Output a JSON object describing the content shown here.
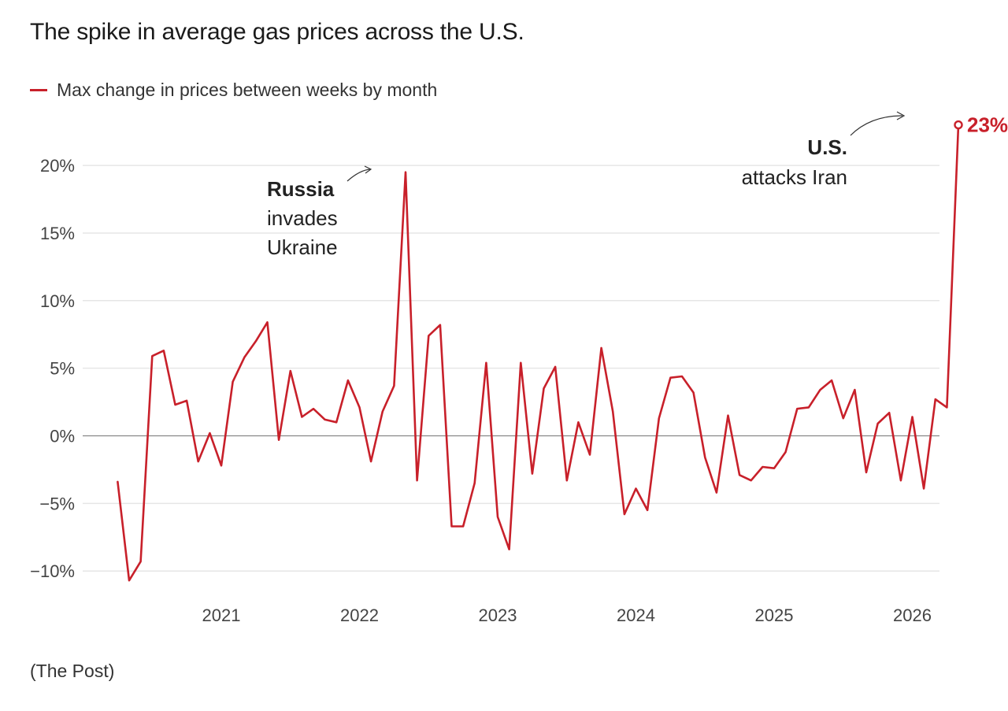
{
  "title": "The spike in average gas prices across the U.S.",
  "legend_label": "Max change in prices between weeks by month",
  "source": "(The Post)",
  "colors": {
    "line": "#c8202a",
    "grid": "#e6e6e6",
    "zero": "#888888",
    "text": "#222222"
  },
  "chart_data": {
    "type": "line",
    "title": "The spike in average gas prices across the U.S.",
    "xlabel": "",
    "ylabel": "",
    "ylim": [
      -10,
      20
    ],
    "yticks": [
      {
        "value": 20,
        "label": "20%"
      },
      {
        "value": 15,
        "label": "15%"
      },
      {
        "value": 10,
        "label": "10%"
      },
      {
        "value": 5,
        "label": "5%"
      },
      {
        "value": 0,
        "label": "0%"
      },
      {
        "value": -5,
        "label": "−5%"
      },
      {
        "value": -10,
        "label": "−10%"
      }
    ],
    "xticks": [
      {
        "t": 2021.0,
        "label": "2021"
      },
      {
        "t": 2022.0,
        "label": "2022"
      },
      {
        "t": 2023.0,
        "label": "2023"
      },
      {
        "t": 2024.0,
        "label": "2024"
      },
      {
        "t": 2025.0,
        "label": "2025"
      },
      {
        "t": 2026.0,
        "label": "2026"
      }
    ],
    "series": [
      {
        "name": "Max change in prices between weeks by month",
        "start": 2020.25,
        "step_months": 1,
        "values": [
          -3.4,
          -10.7,
          -9.3,
          5.9,
          6.3,
          2.3,
          2.6,
          -1.9,
          0.2,
          -2.2,
          4.0,
          5.8,
          7.0,
          8.4,
          -0.3,
          4.8,
          1.4,
          2.0,
          1.2,
          1.0,
          4.1,
          2.1,
          -1.9,
          1.8,
          3.7,
          19.5,
          -3.3,
          7.4,
          8.2,
          -6.7,
          -6.7,
          -3.5,
          5.4,
          -6.0,
          -8.4,
          5.4,
          -2.8,
          3.5,
          5.1,
          -3.3,
          1.0,
          -1.4,
          6.5,
          1.8,
          -5.8,
          -3.9,
          -5.5,
          1.3,
          4.3,
          4.4,
          3.2,
          -1.6,
          -4.2,
          1.5,
          -2.9,
          -3.3,
          -2.3,
          -2.4,
          -1.2,
          2.0,
          2.1,
          3.4,
          4.1,
          1.3,
          3.4,
          -2.7,
          0.9,
          1.7,
          -3.3,
          1.4,
          -3.9,
          2.7,
          2.1,
          23.0
        ]
      }
    ],
    "annotations": [
      {
        "bold": "Russia",
        "lines": [
          "invades",
          "Ukraine"
        ]
      },
      {
        "bold": "U.S.",
        "lines": [
          "attacks Iran"
        ]
      }
    ],
    "end_label": "23%"
  }
}
